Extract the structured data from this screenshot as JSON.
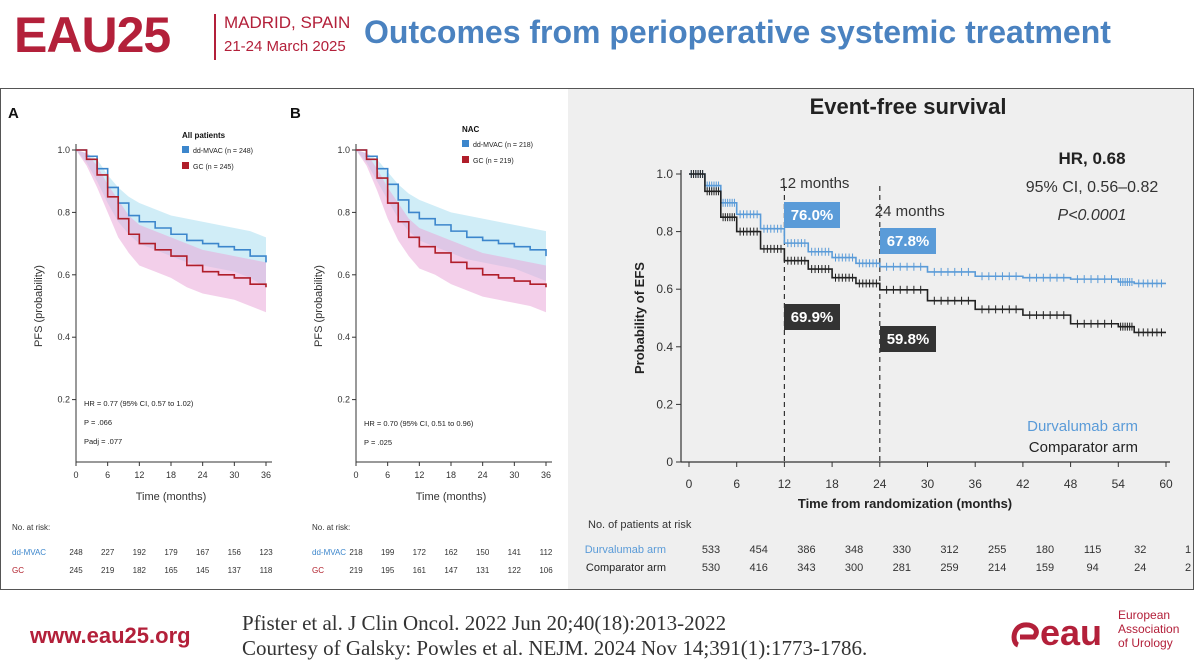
{
  "header": {
    "logo": "EAU25",
    "city": "MADRID, SPAIN",
    "dates": "21-24 March 2025",
    "title": "Outcomes from perioperative systemic treatment"
  },
  "footer": {
    "url": "www.eau25.org",
    "citation1": "Pfister et al. J Clin Oncol. 2022 Jun 20;40(18):2013-2022",
    "citation2": "Courtesy of Galsky: Powles et al. NEJM. 2024 Nov 14;391(1):1773-1786.",
    "logo_text": "eau",
    "org_line1": "European",
    "org_line2": "Association",
    "org_line3": "of Urology"
  },
  "colors": {
    "brand_red": "#b3203a",
    "title_blue": "#4a82c0",
    "series_blue": "#3c86cc",
    "series_red": "#b01e2a",
    "series_black": "#222222",
    "durva_blue": "#5a9bd8"
  },
  "chart_data": [
    {
      "type": "line",
      "panel_label": "A",
      "subset": "All patients",
      "ylabel": "PFS (probability)",
      "xlabel": "Time (months)",
      "xlim": [
        0,
        36
      ],
      "ylim": [
        0,
        1.0
      ],
      "x_ticks": [
        0,
        6,
        12,
        18,
        24,
        30,
        36
      ],
      "y_ticks": [
        0.2,
        0.4,
        0.6,
        0.8,
        1.0
      ],
      "y_tick_labels": [
        "0.2",
        "0.4",
        "0.6",
        "0.8",
        "1.0"
      ],
      "x": [
        0,
        2,
        4,
        6,
        8,
        10,
        12,
        15,
        18,
        21,
        24,
        27,
        30,
        33,
        36
      ],
      "series": [
        {
          "name": "dd-MVAC (n = 248)",
          "color": "#3c86cc",
          "values": [
            1.0,
            0.98,
            0.94,
            0.88,
            0.83,
            0.79,
            0.77,
            0.75,
            0.73,
            0.71,
            0.7,
            0.69,
            0.68,
            0.66,
            0.64
          ],
          "ci_low": [
            1.0,
            0.96,
            0.9,
            0.83,
            0.77,
            0.73,
            0.7,
            0.68,
            0.66,
            0.64,
            0.63,
            0.62,
            0.61,
            0.59,
            0.56
          ],
          "ci_high": [
            1.0,
            0.99,
            0.97,
            0.92,
            0.88,
            0.85,
            0.83,
            0.81,
            0.79,
            0.78,
            0.77,
            0.76,
            0.75,
            0.74,
            0.72
          ]
        },
        {
          "name": "GC (n = 245)",
          "color": "#b01e2a",
          "values": [
            1.0,
            0.97,
            0.92,
            0.85,
            0.78,
            0.73,
            0.7,
            0.68,
            0.66,
            0.63,
            0.61,
            0.6,
            0.59,
            0.57,
            0.56
          ],
          "ci_low": [
            1.0,
            0.95,
            0.88,
            0.8,
            0.72,
            0.67,
            0.63,
            0.61,
            0.59,
            0.56,
            0.54,
            0.53,
            0.52,
            0.5,
            0.48
          ],
          "ci_high": [
            1.0,
            0.99,
            0.95,
            0.89,
            0.84,
            0.79,
            0.76,
            0.74,
            0.72,
            0.7,
            0.68,
            0.67,
            0.66,
            0.65,
            0.64
          ]
        }
      ],
      "annotations": [
        "HR = 0.77 (95% CI, 0.57 to 1.02)",
        "P = .066",
        "Padj = .077"
      ],
      "risk_table": {
        "header": "No. at risk:",
        "rows": [
          {
            "label": "dd-MVAC",
            "color": "#3c86cc",
            "values": [
              "248",
              "227",
              "192",
              "179",
              "167",
              "156",
              "123"
            ]
          },
          {
            "label": "GC",
            "color": "#b01e2a",
            "values": [
              "245",
              "219",
              "182",
              "165",
              "145",
              "137",
              "118"
            ]
          }
        ]
      }
    },
    {
      "type": "line",
      "panel_label": "B",
      "subset": "NAC",
      "ylabel": "PFS (probability)",
      "xlabel": "Time (months)",
      "xlim": [
        0,
        36
      ],
      "ylim": [
        0,
        1.0
      ],
      "x_ticks": [
        0,
        6,
        12,
        18,
        24,
        30,
        36
      ],
      "y_ticks": [
        0.2,
        0.4,
        0.6,
        0.8,
        1.0
      ],
      "y_tick_labels": [
        "0.2",
        "0.4",
        "0.6",
        "0.8",
        "1.0"
      ],
      "x": [
        0,
        2,
        4,
        6,
        8,
        10,
        12,
        15,
        18,
        21,
        24,
        27,
        30,
        33,
        36
      ],
      "series": [
        {
          "name": "dd-MVAC (n = 218)",
          "color": "#3c86cc",
          "values": [
            1.0,
            0.98,
            0.94,
            0.89,
            0.84,
            0.8,
            0.78,
            0.76,
            0.74,
            0.72,
            0.71,
            0.7,
            0.69,
            0.68,
            0.66
          ],
          "ci_low": [
            1.0,
            0.96,
            0.9,
            0.84,
            0.78,
            0.74,
            0.71,
            0.69,
            0.67,
            0.65,
            0.64,
            0.63,
            0.62,
            0.6,
            0.58
          ],
          "ci_high": [
            1.0,
            0.99,
            0.97,
            0.93,
            0.89,
            0.86,
            0.84,
            0.82,
            0.8,
            0.79,
            0.78,
            0.77,
            0.76,
            0.75,
            0.74
          ]
        },
        {
          "name": "GC (n = 219)",
          "color": "#b01e2a",
          "values": [
            1.0,
            0.97,
            0.91,
            0.83,
            0.77,
            0.72,
            0.69,
            0.67,
            0.64,
            0.62,
            0.6,
            0.59,
            0.58,
            0.57,
            0.56
          ],
          "ci_low": [
            1.0,
            0.95,
            0.87,
            0.78,
            0.71,
            0.66,
            0.62,
            0.6,
            0.57,
            0.55,
            0.53,
            0.52,
            0.51,
            0.5,
            0.48
          ],
          "ci_high": [
            1.0,
            0.99,
            0.94,
            0.88,
            0.83,
            0.78,
            0.75,
            0.73,
            0.71,
            0.69,
            0.67,
            0.66,
            0.65,
            0.64,
            0.63
          ]
        }
      ],
      "annotations": [
        "HR = 0.70 (95% CI, 0.51 to 0.96)",
        "P = .025"
      ],
      "risk_table": {
        "header": "No. at risk:",
        "rows": [
          {
            "label": "dd-MVAC",
            "color": "#3c86cc",
            "values": [
              "218",
              "199",
              "172",
              "162",
              "150",
              "141",
              "112"
            ]
          },
          {
            "label": "GC",
            "color": "#b01e2a",
            "values": [
              "219",
              "195",
              "161",
              "147",
              "131",
              "122",
              "106"
            ]
          }
        ]
      }
    },
    {
      "type": "line",
      "title": "Event-free survival",
      "ylabel": "Probability of EFS",
      "xlabel": "Time from randomization (months)",
      "xlim": [
        0,
        60
      ],
      "ylim": [
        0,
        1.0
      ],
      "x_ticks": [
        0,
        6,
        12,
        18,
        24,
        30,
        36,
        42,
        48,
        54,
        60
      ],
      "y_ticks": [
        0,
        0.2,
        0.4,
        0.6,
        0.8,
        1.0
      ],
      "y_tick_labels": [
        "0",
        "0.2",
        "0.4",
        "0.6",
        "0.8",
        "1.0"
      ],
      "x": [
        0,
        2,
        4,
        6,
        9,
        12,
        15,
        18,
        21,
        24,
        30,
        36,
        42,
        48,
        54,
        56,
        60
      ],
      "series": [
        {
          "name": "Durvalumab arm",
          "color": "#5a9bd8",
          "values": [
            1.0,
            0.96,
            0.9,
            0.86,
            0.81,
            0.76,
            0.73,
            0.71,
            0.69,
            0.678,
            0.66,
            0.645,
            0.64,
            0.635,
            0.625,
            0.62,
            0.62
          ]
        },
        {
          "name": "Comparator arm",
          "color": "#222222",
          "values": [
            1.0,
            0.94,
            0.85,
            0.8,
            0.74,
            0.699,
            0.67,
            0.64,
            0.62,
            0.598,
            0.56,
            0.53,
            0.51,
            0.48,
            0.47,
            0.45,
            0.45
          ]
        }
      ],
      "hr_text": "HR, 0.68",
      "ci_text": "95% CI, 0.56–0.82",
      "p_text": "P<0.0001",
      "marker_12": "12 months",
      "marker_24": "24 months",
      "label_durva_12": "76.0%",
      "label_durva_24": "67.8%",
      "label_comp_12": "69.9%",
      "label_comp_24": "59.8%",
      "risk_table": {
        "header": "No. of patients at risk",
        "rows": [
          {
            "label": "Durvalumab arm",
            "color": "#5a9bd8",
            "values": [
              "533",
              "454",
              "386",
              "348",
              "330",
              "312",
              "255",
              "180",
              "115",
              "32",
              "1"
            ]
          },
          {
            "label": "Comparator arm",
            "color": "#222222",
            "values": [
              "530",
              "416",
              "343",
              "300",
              "281",
              "259",
              "214",
              "159",
              "94",
              "24",
              "2"
            ]
          }
        ]
      }
    }
  ]
}
